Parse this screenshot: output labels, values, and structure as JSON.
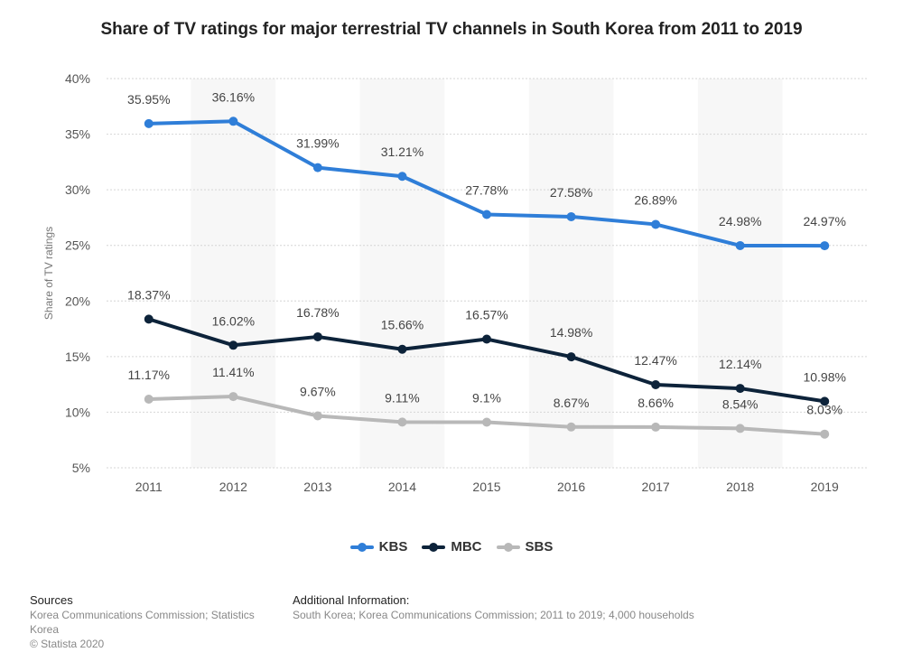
{
  "chart_data": {
    "type": "line",
    "title": "Share of TV ratings for major terrestrial TV channels in South Korea from 2011 to 2019",
    "xlabel": "",
    "ylabel": "Share of TV ratings",
    "categories": [
      "2011",
      "2012",
      "2013",
      "2014",
      "2015",
      "2016",
      "2017",
      "2018",
      "2019"
    ],
    "ylim": [
      5,
      40
    ],
    "yticks": [
      5,
      10,
      15,
      20,
      25,
      30,
      35,
      40
    ],
    "ytick_labels": [
      "5%",
      "10%",
      "15%",
      "20%",
      "25%",
      "30%",
      "35%",
      "40%"
    ],
    "grid": true,
    "legend_position": "bottom-center",
    "series": [
      {
        "name": "KBS",
        "color": "#2f7ed8",
        "values": [
          35.95,
          36.16,
          31.99,
          31.21,
          27.78,
          27.58,
          26.89,
          24.98,
          24.97
        ],
        "labels": [
          "35.95%",
          "36.16%",
          "31.99%",
          "31.21%",
          "27.78%",
          "27.58%",
          "26.89%",
          "24.98%",
          "24.97%"
        ]
      },
      {
        "name": "MBC",
        "color": "#0d233a",
        "values": [
          18.37,
          16.02,
          16.78,
          15.66,
          16.57,
          14.98,
          12.47,
          12.14,
          10.98
        ],
        "labels": [
          "18.37%",
          "16.02%",
          "16.78%",
          "15.66%",
          "16.57%",
          "14.98%",
          "12.47%",
          "12.14%",
          "10.98%"
        ]
      },
      {
        "name": "SBS",
        "color": "#b8b8b8",
        "values": [
          11.17,
          11.41,
          9.67,
          9.11,
          9.1,
          8.67,
          8.66,
          8.54,
          8.03
        ],
        "labels": [
          "11.17%",
          "11.41%",
          "9.67%",
          "9.11%",
          "9.1%",
          "8.67%",
          "8.66%",
          "8.54%",
          "8.03%"
        ]
      }
    ]
  },
  "footer": {
    "sources_heading": "Sources",
    "sources_text": "Korea Communications Commission; Statistics Korea",
    "copyright": "© Statista 2020",
    "additional_heading": "Additional Information:",
    "additional_text": "South Korea; Korea Communications Commission; 2011 to 2019; 4,000 households"
  }
}
